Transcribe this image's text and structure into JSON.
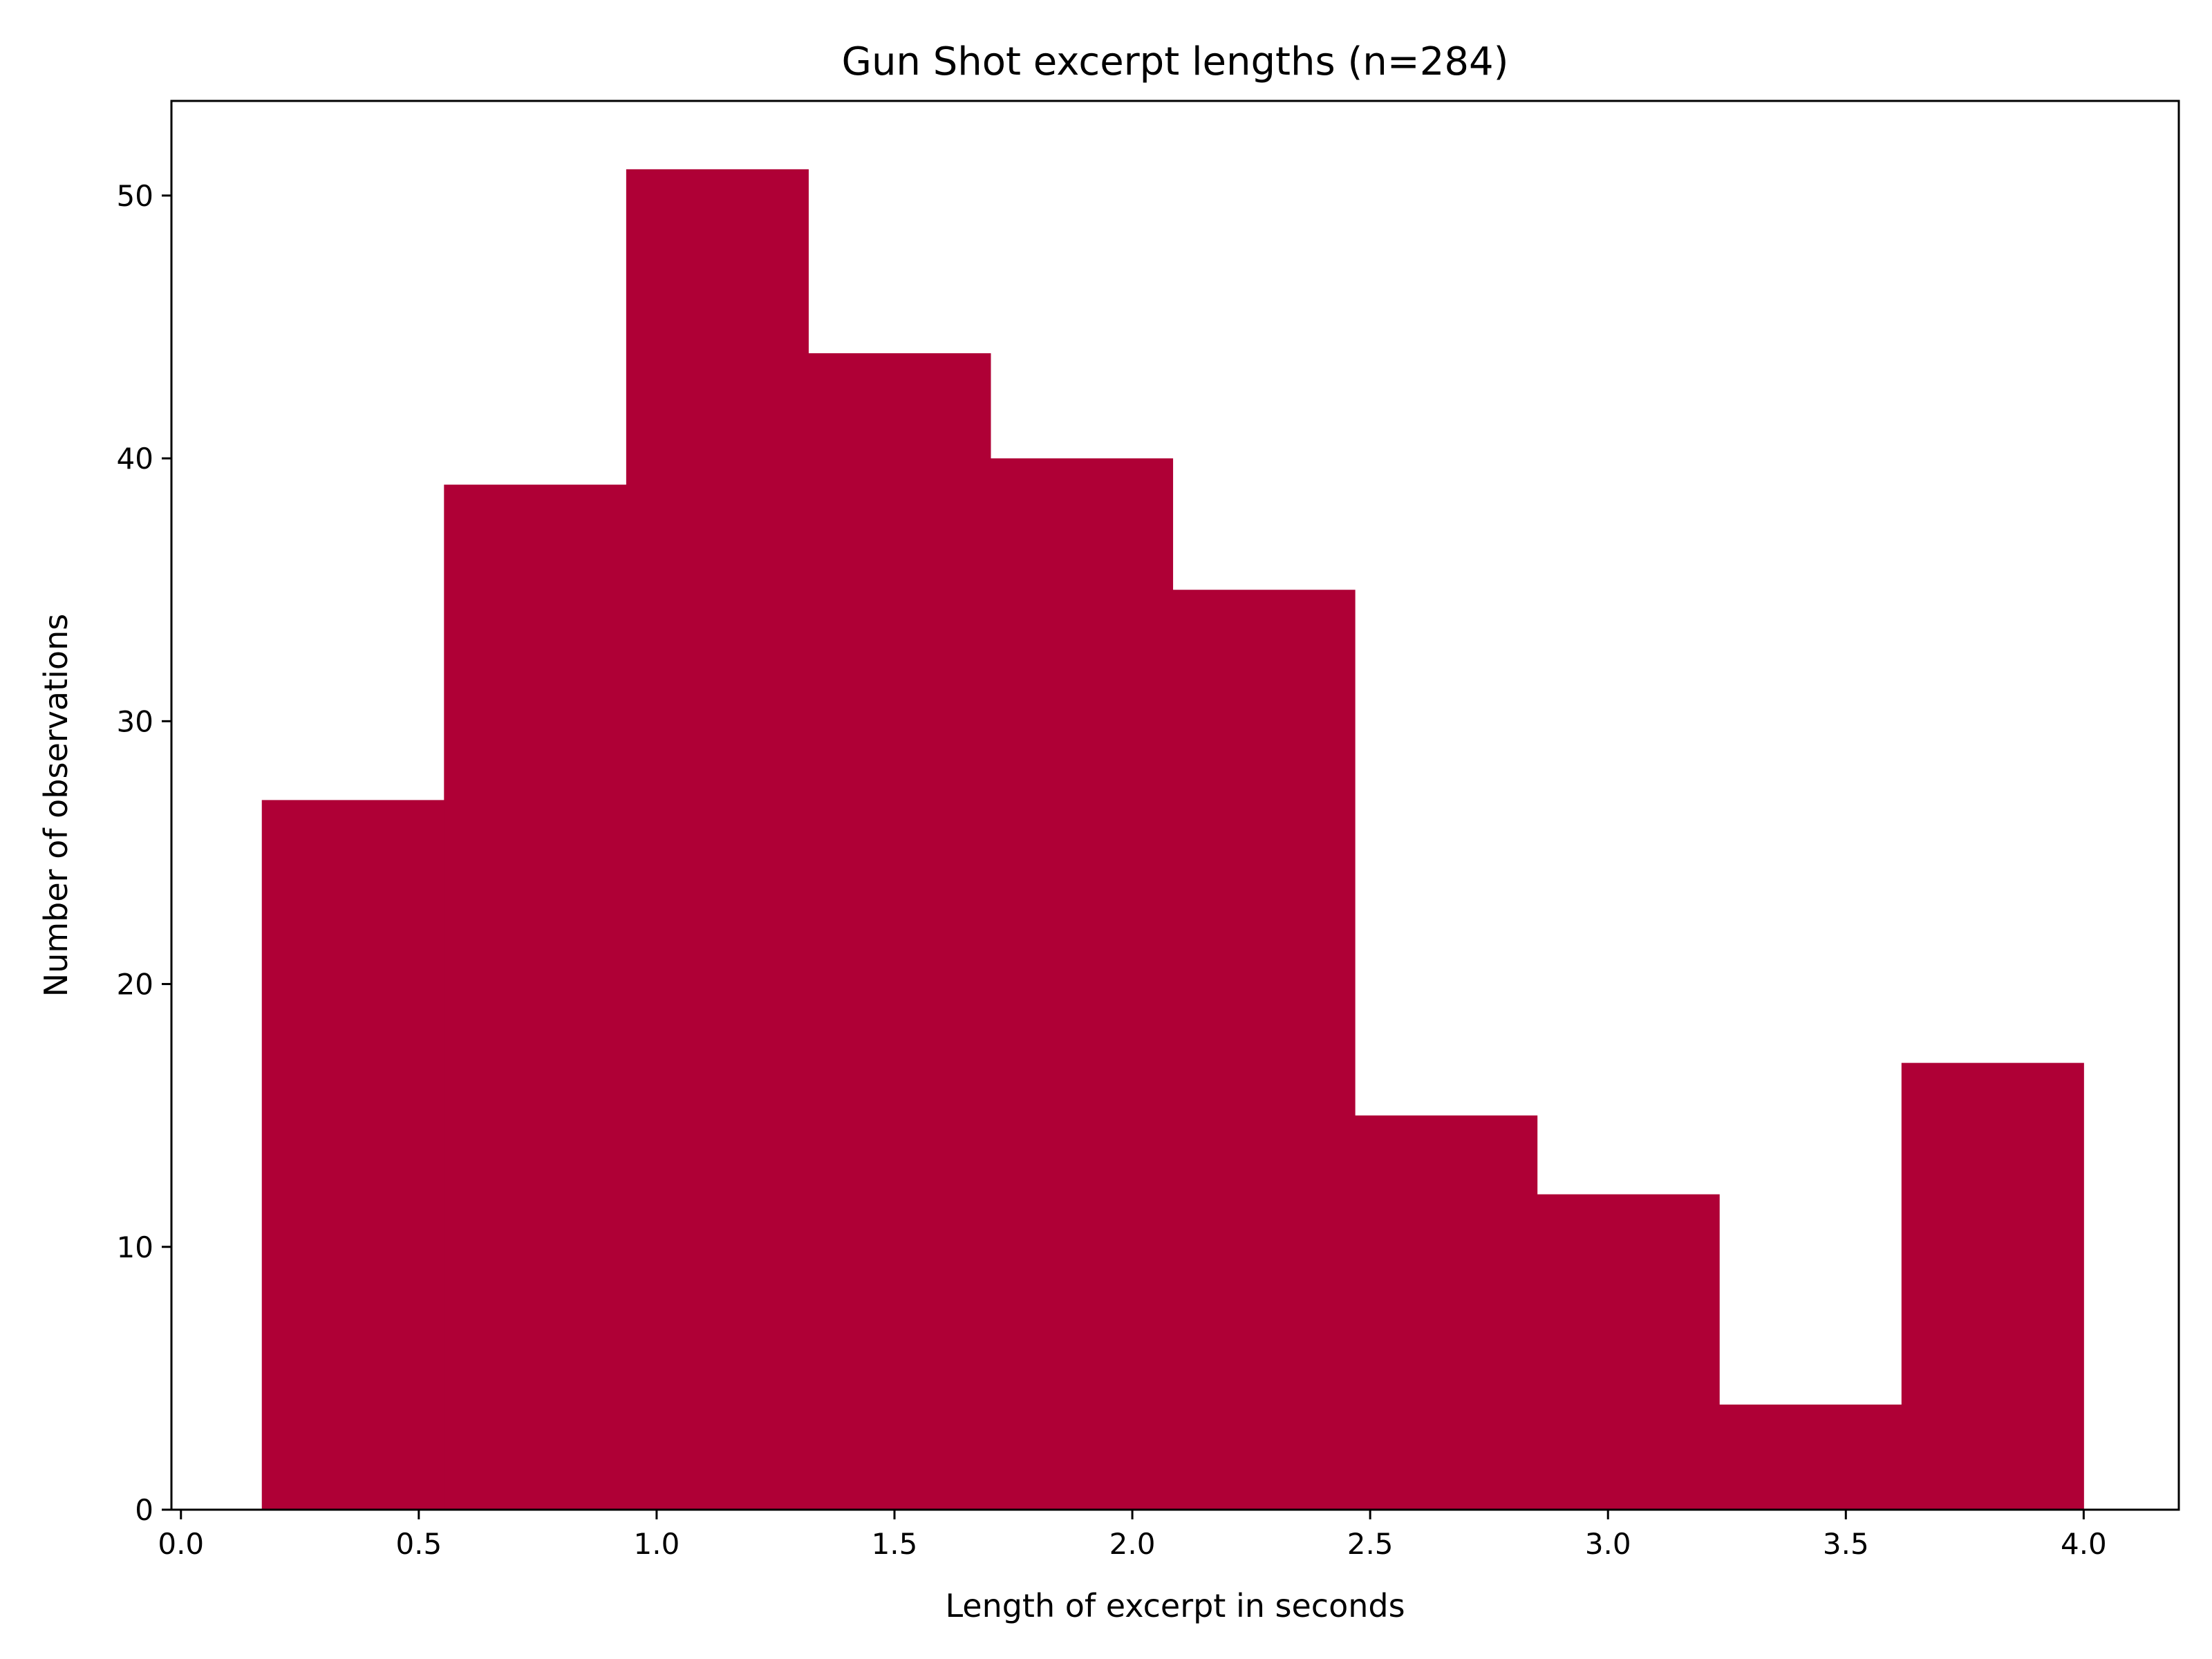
{
  "chart_data": {
    "type": "bar",
    "title": "Gun Shot excerpt lengths (n=284)",
    "xlabel": "Length of excerpt in seconds",
    "ylabel": "Number of observations",
    "bin_edges": [
      0.17,
      0.553,
      0.936,
      1.319,
      1.702,
      2.085,
      2.468,
      2.851,
      3.234,
      3.617,
      4.0
    ],
    "values": [
      27,
      39,
      51,
      44,
      40,
      35,
      15,
      12,
      4,
      17
    ],
    "xlim": [
      -0.02,
      4.2
    ],
    "ylim": [
      0,
      53.6
    ],
    "xticks": [
      0.0,
      0.5,
      1.0,
      1.5,
      2.0,
      2.5,
      3.0,
      3.5,
      4.0
    ],
    "xtick_labels": [
      "0.0",
      "0.5",
      "1.0",
      "1.5",
      "2.0",
      "2.5",
      "3.0",
      "3.5",
      "4.0"
    ],
    "yticks": [
      0,
      10,
      20,
      30,
      40,
      50
    ],
    "ytick_labels": [
      "0",
      "10",
      "20",
      "30",
      "40",
      "50"
    ],
    "bar_color": "#af0036",
    "grid": false,
    "legend": "none"
  }
}
